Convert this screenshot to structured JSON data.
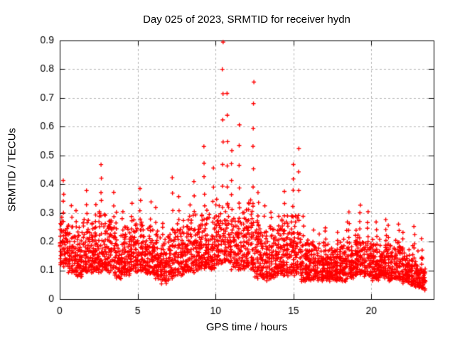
{
  "chart_data": {
    "type": "scatter",
    "title": "Day 025 of 2023, SRMTID for receiver hydn",
    "xlabel": "GPS time / hours",
    "ylabel": "SRMTID / TECUs",
    "xlim": [
      0,
      24
    ],
    "ylim": [
      0,
      0.9
    ],
    "xticks": [
      {
        "v": 0,
        "label": "0"
      },
      {
        "v": 5,
        "label": "5"
      },
      {
        "v": 10,
        "label": "10"
      },
      {
        "v": 15,
        "label": "15"
      },
      {
        "v": 20,
        "label": "20"
      }
    ],
    "yticks": [
      {
        "v": 0.0,
        "label": "0"
      },
      {
        "v": 0.1,
        "label": "0.1"
      },
      {
        "v": 0.2,
        "label": "0.2"
      },
      {
        "v": 0.3,
        "label": "0.3"
      },
      {
        "v": 0.4,
        "label": "0.4"
      },
      {
        "v": 0.5,
        "label": "0.5"
      },
      {
        "v": 0.6,
        "label": "0.6"
      },
      {
        "v": 0.7,
        "label": "0.7"
      },
      {
        "v": 0.8,
        "label": "0.8"
      },
      {
        "v": 0.9,
        "label": "0.9"
      }
    ],
    "grid": {
      "show": true,
      "style": "dashed",
      "on_xticks": [
        5,
        10,
        15,
        20
      ],
      "on_yticks": [
        0.1,
        0.2,
        0.3,
        0.4,
        0.5,
        0.6,
        0.7,
        0.8
      ]
    },
    "legend": "none",
    "series_name": "SRMTID",
    "marker": "plus",
    "colors": {
      "marker": "#ff0000",
      "axis": "#000000",
      "grid": "#b4b4b4",
      "text": "#000000",
      "background": "#ffffff"
    },
    "seed": 11,
    "profile_note": "half-hour bins: [start_hour, min, bulk_max, peak_max] of SRMTID/TECUs read from plot",
    "bin_hours": 0.5,
    "bins": [
      [
        0.0,
        0.12,
        0.3,
        0.41
      ],
      [
        0.5,
        0.1,
        0.28,
        0.33
      ],
      [
        1.0,
        0.08,
        0.25,
        0.31
      ],
      [
        1.5,
        0.1,
        0.28,
        0.37
      ],
      [
        2.0,
        0.1,
        0.28,
        0.33
      ],
      [
        2.5,
        0.1,
        0.3,
        0.46
      ],
      [
        3.0,
        0.1,
        0.3,
        0.37
      ],
      [
        3.5,
        0.08,
        0.24,
        0.3
      ],
      [
        4.0,
        0.09,
        0.26,
        0.31
      ],
      [
        4.5,
        0.1,
        0.28,
        0.34
      ],
      [
        5.0,
        0.1,
        0.28,
        0.39
      ],
      [
        5.5,
        0.09,
        0.26,
        0.33
      ],
      [
        6.0,
        0.08,
        0.24,
        0.31
      ],
      [
        6.5,
        0.06,
        0.22,
        0.27
      ],
      [
        7.0,
        0.08,
        0.26,
        0.43
      ],
      [
        7.5,
        0.09,
        0.28,
        0.36
      ],
      [
        8.0,
        0.1,
        0.28,
        0.33
      ],
      [
        8.5,
        0.1,
        0.3,
        0.41
      ],
      [
        9.0,
        0.11,
        0.32,
        0.53
      ],
      [
        9.5,
        0.11,
        0.3,
        0.46
      ],
      [
        10.0,
        0.13,
        0.35,
        0.9
      ],
      [
        10.5,
        0.13,
        0.33,
        0.72
      ],
      [
        11.0,
        0.11,
        0.3,
        0.52
      ],
      [
        11.5,
        0.11,
        0.32,
        0.6
      ],
      [
        12.0,
        0.11,
        0.35,
        0.75
      ],
      [
        12.5,
        0.08,
        0.28,
        0.37
      ],
      [
        13.0,
        0.07,
        0.26,
        0.33
      ],
      [
        13.5,
        0.08,
        0.26,
        0.31
      ],
      [
        14.0,
        0.09,
        0.28,
        0.37
      ],
      [
        14.5,
        0.09,
        0.3,
        0.47
      ],
      [
        15.0,
        0.09,
        0.3,
        0.53
      ],
      [
        15.5,
        0.07,
        0.22,
        0.28
      ],
      [
        16.0,
        0.07,
        0.2,
        0.24
      ],
      [
        16.5,
        0.07,
        0.2,
        0.23
      ],
      [
        17.0,
        0.07,
        0.2,
        0.25
      ],
      [
        17.5,
        0.07,
        0.2,
        0.23
      ],
      [
        18.0,
        0.07,
        0.21,
        0.26
      ],
      [
        18.5,
        0.08,
        0.22,
        0.3
      ],
      [
        19.0,
        0.09,
        0.24,
        0.33
      ],
      [
        19.5,
        0.08,
        0.22,
        0.3
      ],
      [
        20.0,
        0.07,
        0.2,
        0.26
      ],
      [
        20.5,
        0.08,
        0.21,
        0.27
      ],
      [
        21.0,
        0.07,
        0.2,
        0.25
      ],
      [
        21.5,
        0.07,
        0.2,
        0.26
      ],
      [
        22.0,
        0.06,
        0.18,
        0.23
      ],
      [
        22.5,
        0.05,
        0.18,
        0.25
      ],
      [
        23.0,
        0.04,
        0.16,
        0.21
      ]
    ]
  }
}
